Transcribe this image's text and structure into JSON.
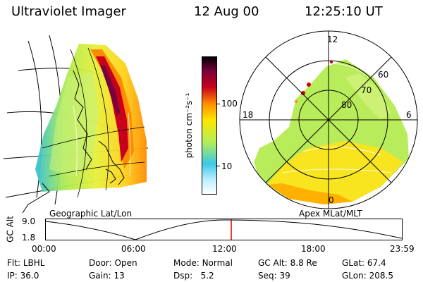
{
  "header": {
    "instrument": "Ultraviolet Imager",
    "date": "12 Aug 00",
    "time": "12:25:10 UT"
  },
  "panels": {
    "left_label": "Geographic Lat/Lon",
    "right_label": "Apex MLat/MLT"
  },
  "colorbar": {
    "unit_label": "photon cm⁻²s⁻¹",
    "ticks": [
      "100",
      "10"
    ],
    "scale": "log",
    "stops": [
      "#ffffff",
      "#c0f0ff",
      "#3cc8e6",
      "#b4ee55",
      "#ffe600",
      "#ff8c00",
      "#c8001e",
      "#78003c",
      "#000000"
    ]
  },
  "polar_plot": {
    "mlt_labels": [
      "12",
      "18",
      "6",
      "0"
    ],
    "lat_labels": [
      "60",
      "70",
      "80"
    ]
  },
  "altitude_track": {
    "ylabel": "GC Alt",
    "y_ticks": [
      "9.0",
      "1.8"
    ],
    "x_ticks": [
      "00:00",
      "06:00",
      "12:00",
      "18:00",
      "23:59"
    ],
    "current_time_fraction": 0.52,
    "marker_color": "#d00000"
  },
  "status": {
    "flt_label": "Flt:",
    "flt_value": "LBHL",
    "ip_label": "IP:",
    "ip_value": "36.0",
    "door_label": "Door:",
    "door_value": "Open",
    "gain_label": "Gain:",
    "gain_value": "13",
    "mode_label": "Mode:",
    "mode_value": "Normal",
    "dsp_label": "Dsp:",
    "dsp_value": "5.2",
    "gcalt_label": "GC Alt:",
    "gcalt_value": "8.8 Re",
    "seq_label": "Seq:",
    "seq_value": "39",
    "glat_label": "GLat:",
    "glat_value": "67.4",
    "glon_label": "GLon:",
    "glon_value": "208.5"
  }
}
